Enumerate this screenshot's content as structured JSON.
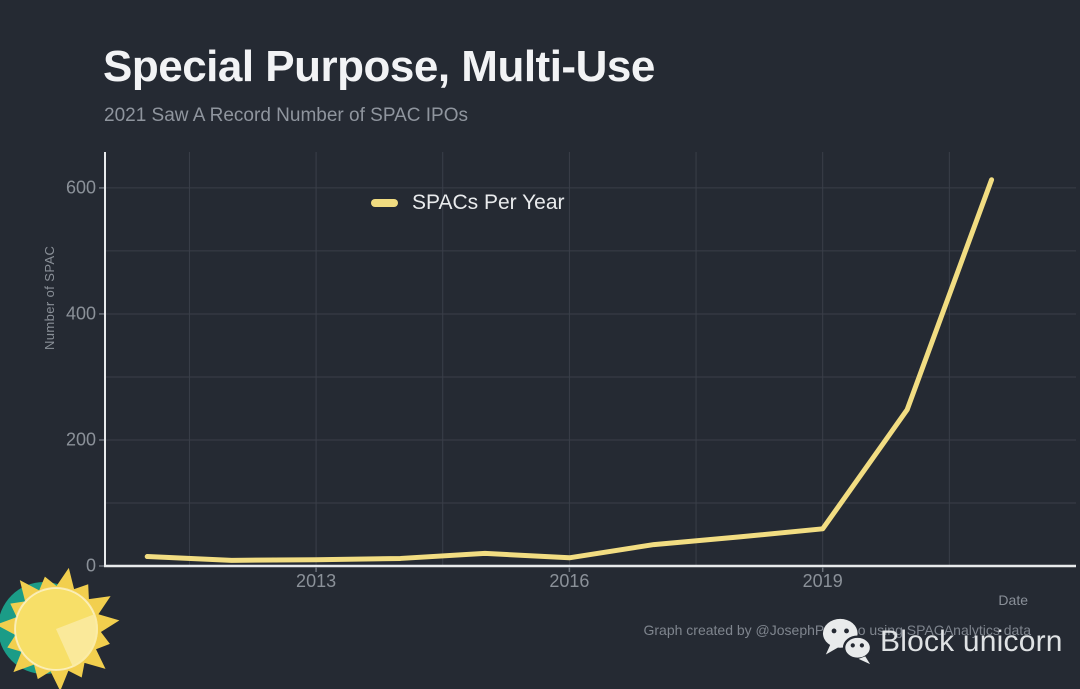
{
  "header": {
    "title": "Special Purpose, Multi-Use",
    "subtitle": "2021 Saw A Record Number of SPAC IPOs"
  },
  "legend": {
    "label": "SPACs Per Year"
  },
  "axes": {
    "x_title": "Date",
    "y_title": "Number of SPAC"
  },
  "footer": {
    "credit": "Graph created by @JosephPolitano using SPACAnalytics data",
    "brand": "Block unicorn"
  },
  "icons": {
    "wechat": "wechat-icon",
    "sun": "sun-logo-icon"
  },
  "colors": {
    "background": "#252a33",
    "line": "#f2dd82",
    "grid": "#3a3f49",
    "axis": "#e8eaec",
    "title": "#f2f3f5",
    "subtitle": "#8f959e",
    "tick": "#8b9199",
    "sun_yellow": "#f2cf4e",
    "sun_teal": "#1b9c87"
  },
  "chart_data": {
    "type": "line",
    "title": "Special Purpose, Multi-Use",
    "subtitle": "2021 Saw A Record Number of SPAC IPOs",
    "xlabel": "Date",
    "ylabel": "Number of SPAC",
    "legend_position": "top-center",
    "grid": true,
    "series": [
      {
        "name": "SPACs Per Year",
        "x": [
          2011,
          2012,
          2013,
          2014,
          2015,
          2016,
          2017,
          2018,
          2019,
          2020,
          2021
        ],
        "values": [
          15,
          9,
          10,
          12,
          20,
          13,
          34,
          46,
          59,
          248,
          613
        ]
      }
    ],
    "x_ticks": [
      {
        "value": 2013,
        "label": "2013"
      },
      {
        "value": 2016,
        "label": "2016"
      },
      {
        "value": 2019,
        "label": "2019"
      }
    ],
    "y_ticks": [
      {
        "value": 0,
        "label": "0"
      },
      {
        "value": 200,
        "label": "200"
      },
      {
        "value": 400,
        "label": "400"
      },
      {
        "value": 600,
        "label": "600"
      }
    ],
    "x_grid": [
      2011.5,
      2013,
      2014.5,
      2016,
      2017.5,
      2019,
      2020.5
    ],
    "y_grid": [
      100,
      200,
      300,
      400,
      500,
      600
    ],
    "xlim": [
      2010.5,
      2022.0
    ],
    "ylim": [
      0,
      657
    ]
  }
}
